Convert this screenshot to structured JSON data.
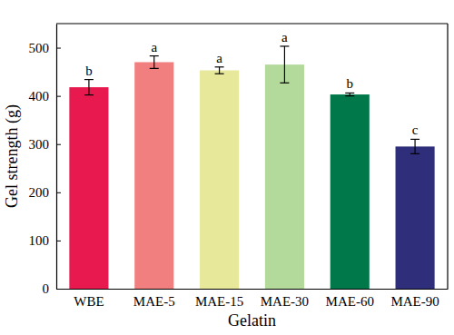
{
  "chart_data": {
    "type": "bar",
    "x_label": "Gelatin",
    "y_label": "Gel strength (g)",
    "categories": [
      "WBE",
      "MAE-5",
      "MAE-15",
      "MAE-30",
      "MAE-60",
      "MAE-90"
    ],
    "values": [
      418,
      470,
      453,
      465,
      403,
      295
    ],
    "errors": [
      16,
      13,
      7,
      38,
      3,
      15
    ],
    "annotations": [
      "b",
      "a",
      "a",
      "a",
      "b",
      "c"
    ],
    "colors": [
      "#e8194f",
      "#f27f80",
      "#e8e89b",
      "#b3d99b",
      "#00784a",
      "#2e2e7a"
    ],
    "ylim": [
      0,
      550
    ],
    "yticks": [
      0,
      100,
      200,
      300,
      400,
      500
    ],
    "grid": false
  }
}
